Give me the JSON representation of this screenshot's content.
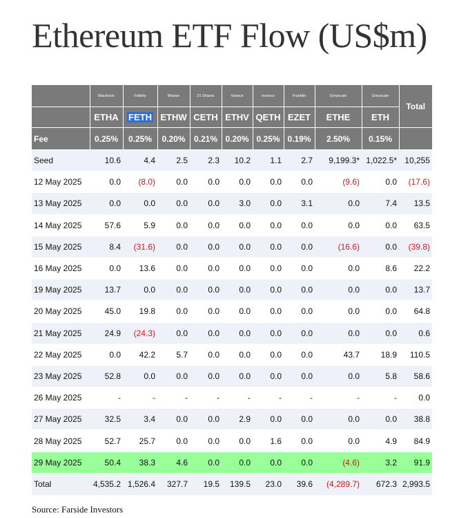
{
  "title": "Ethereum ETF Flow (US$m)",
  "issuers": [
    "Blackrock",
    "Fidelity",
    "Bitwise",
    "21 Shares",
    "Vaneck",
    "Invesco",
    "Franklin",
    "Greyscale",
    "Greyscale"
  ],
  "total_label": "Total",
  "tickers": [
    "ETHA",
    "FETH",
    "ETHW",
    "CETH",
    "ETHV",
    "QETH",
    "EZET",
    "ETHE",
    "ETH"
  ],
  "fee": {
    "label": "Fee",
    "values": [
      "0.25%",
      "0.25%",
      "0.20%",
      "0.21%",
      "0.20%",
      "0.25%",
      "0.19%",
      "2.50%",
      "0.15%"
    ]
  },
  "rows": [
    {
      "label": "Seed",
      "values": [
        "10.6",
        "4.4",
        "2.5",
        "2.3",
        "10.2",
        "1.1",
        "2.7",
        "9,199.3*",
        "1,022.5*"
      ],
      "total": "10,255"
    },
    {
      "label": "12 May 2025",
      "values": [
        "0.0",
        "(8.0)",
        "0.0",
        "0.0",
        "0.0",
        "0.0",
        "0.0",
        "(9.6)",
        "0.0"
      ],
      "total": "(17.6)"
    },
    {
      "label": "13 May 2025",
      "values": [
        "0.0",
        "0.0",
        "0.0",
        "0.0",
        "3.0",
        "0.0",
        "3.1",
        "0.0",
        "7.4"
      ],
      "total": "13.5"
    },
    {
      "label": "14 May 2025",
      "values": [
        "57.6",
        "5.9",
        "0.0",
        "0.0",
        "0.0",
        "0.0",
        "0.0",
        "0.0",
        "0.0"
      ],
      "total": "63.5"
    },
    {
      "label": "15 May 2025",
      "values": [
        "8.4",
        "(31.6)",
        "0.0",
        "0.0",
        "0.0",
        "0.0",
        "0.0",
        "(16.6)",
        "0.0"
      ],
      "total": "(39.8)"
    },
    {
      "label": "16 May 2025",
      "values": [
        "0.0",
        "13.6",
        "0.0",
        "0.0",
        "0.0",
        "0.0",
        "0.0",
        "0.0",
        "8.6"
      ],
      "total": "22.2"
    },
    {
      "label": "19 May 2025",
      "values": [
        "13.7",
        "0.0",
        "0.0",
        "0.0",
        "0.0",
        "0.0",
        "0.0",
        "0.0",
        "0.0"
      ],
      "total": "13.7"
    },
    {
      "label": "20 May 2025",
      "values": [
        "45.0",
        "19.8",
        "0.0",
        "0.0",
        "0.0",
        "0.0",
        "0.0",
        "0.0",
        "0.0"
      ],
      "total": "64.8"
    },
    {
      "label": "21 May 2025",
      "values": [
        "24.9",
        "(24.3)",
        "0.0",
        "0.0",
        "0.0",
        "0.0",
        "0.0",
        "0.0",
        "0.0"
      ],
      "total": "0.6"
    },
    {
      "label": "22 May 2025",
      "values": [
        "0.0",
        "42.2",
        "5.7",
        "0.0",
        "0.0",
        "0.0",
        "0.0",
        "43.7",
        "18.9"
      ],
      "total": "110.5"
    },
    {
      "label": "23 May 2025",
      "values": [
        "52.8",
        "0.0",
        "0.0",
        "0.0",
        "0.0",
        "0.0",
        "0.0",
        "0.0",
        "5.8"
      ],
      "total": "58.6"
    },
    {
      "label": "26 May 2025",
      "values": [
        "-",
        "-",
        "-",
        "-",
        "-",
        "-",
        "-",
        "-",
        "-"
      ],
      "total": "0.0"
    },
    {
      "label": "27 May 2025",
      "values": [
        "32.5",
        "3.4",
        "0.0",
        "0.0",
        "2.9",
        "0.0",
        "0.0",
        "0.0",
        "0.0"
      ],
      "total": "38.8"
    },
    {
      "label": "28 May 2025",
      "values": [
        "52.7",
        "25.7",
        "0.0",
        "0.0",
        "0.0",
        "1.6",
        "0.0",
        "0.0",
        "4.9"
      ],
      "total": "84.9"
    },
    {
      "label": "29 May 2025",
      "values": [
        "50.4",
        "38.3",
        "4.6",
        "0.0",
        "0.0",
        "0.0",
        "0.0",
        "(4.6)",
        "3.2"
      ],
      "total": "91.9",
      "highlight": "#99ff99"
    }
  ],
  "totals": {
    "label": "Total",
    "values": [
      "4,535.2",
      "1,526.4",
      "327.7",
      "19.5",
      "139.5",
      "23.0",
      "39.6",
      "(4,289.7)",
      "672.3"
    ],
    "total": "2,993.5"
  },
  "source": "Source: Farside Investors",
  "colors": {
    "header_bg": "#7a7a7a",
    "row_alt_bg": "#eef1f8",
    "highlight_row_bg": "#99ff99",
    "negative_text": "#dd1111",
    "selection_bg": "#2f6fd6"
  }
}
